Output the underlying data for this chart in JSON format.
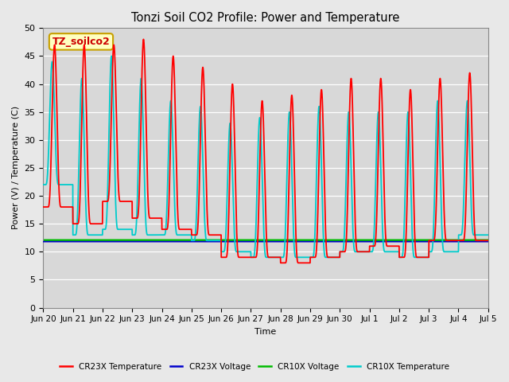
{
  "title": "Tonzi Soil CO2 Profile: Power and Temperature",
  "ylabel": "Power (V) / Temperature (C)",
  "xlabel": "Time",
  "ylim": [
    0,
    50
  ],
  "plot_bg": "#d8d8d8",
  "fig_bg": "#e8e8e8",
  "annotation_text": "TZ_soilco2",
  "annotation_bg": "#ffffc0",
  "annotation_edge": "#c8a000",
  "cr23x_temp_color": "#ff0000",
  "cr23x_volt_color": "#0000cc",
  "cr10x_volt_color": "#00bb00",
  "cr10x_temp_color": "#00cccc",
  "legend": [
    {
      "label": "CR23X Temperature",
      "color": "#ff0000"
    },
    {
      "label": "CR23X Voltage",
      "color": "#0000cc"
    },
    {
      "label": "CR10X Voltage",
      "color": "#00bb00"
    },
    {
      "label": "CR10X Temperature",
      "color": "#00cccc"
    }
  ],
  "cr10x_volt_value": 12.0,
  "cr23x_volt_value": 11.8,
  "tick_labels": [
    "Jun 20",
    "Jun 21",
    "Jun 22",
    "Jun 23",
    "Jun 24",
    "Jun 25",
    "Jun 26",
    "Jun 27",
    "Jun 28",
    "Jun 29",
    "Jun 30",
    "Jul 1",
    "Jul 2",
    "Jul 3",
    "Jul 4",
    "Jul 5"
  ],
  "yticks": [
    0,
    5,
    10,
    15,
    20,
    25,
    30,
    35,
    40,
    45,
    50
  ],
  "cr23x_mins": [
    18,
    15,
    19,
    16,
    14,
    13,
    9,
    9,
    8,
    9,
    10,
    11,
    9,
    12,
    12
  ],
  "cr23x_maxs": [
    47,
    47,
    47,
    48,
    45,
    43,
    40,
    37,
    38,
    39,
    41,
    41,
    39,
    41,
    42
  ],
  "cr10x_mins": [
    22,
    13,
    14,
    13,
    13,
    12,
    10,
    9,
    9,
    9,
    10,
    10,
    9,
    10,
    13
  ],
  "cr10x_maxs": [
    44,
    41,
    45,
    41,
    37,
    36,
    33,
    34,
    35,
    36,
    35,
    35,
    35,
    37,
    37
  ]
}
